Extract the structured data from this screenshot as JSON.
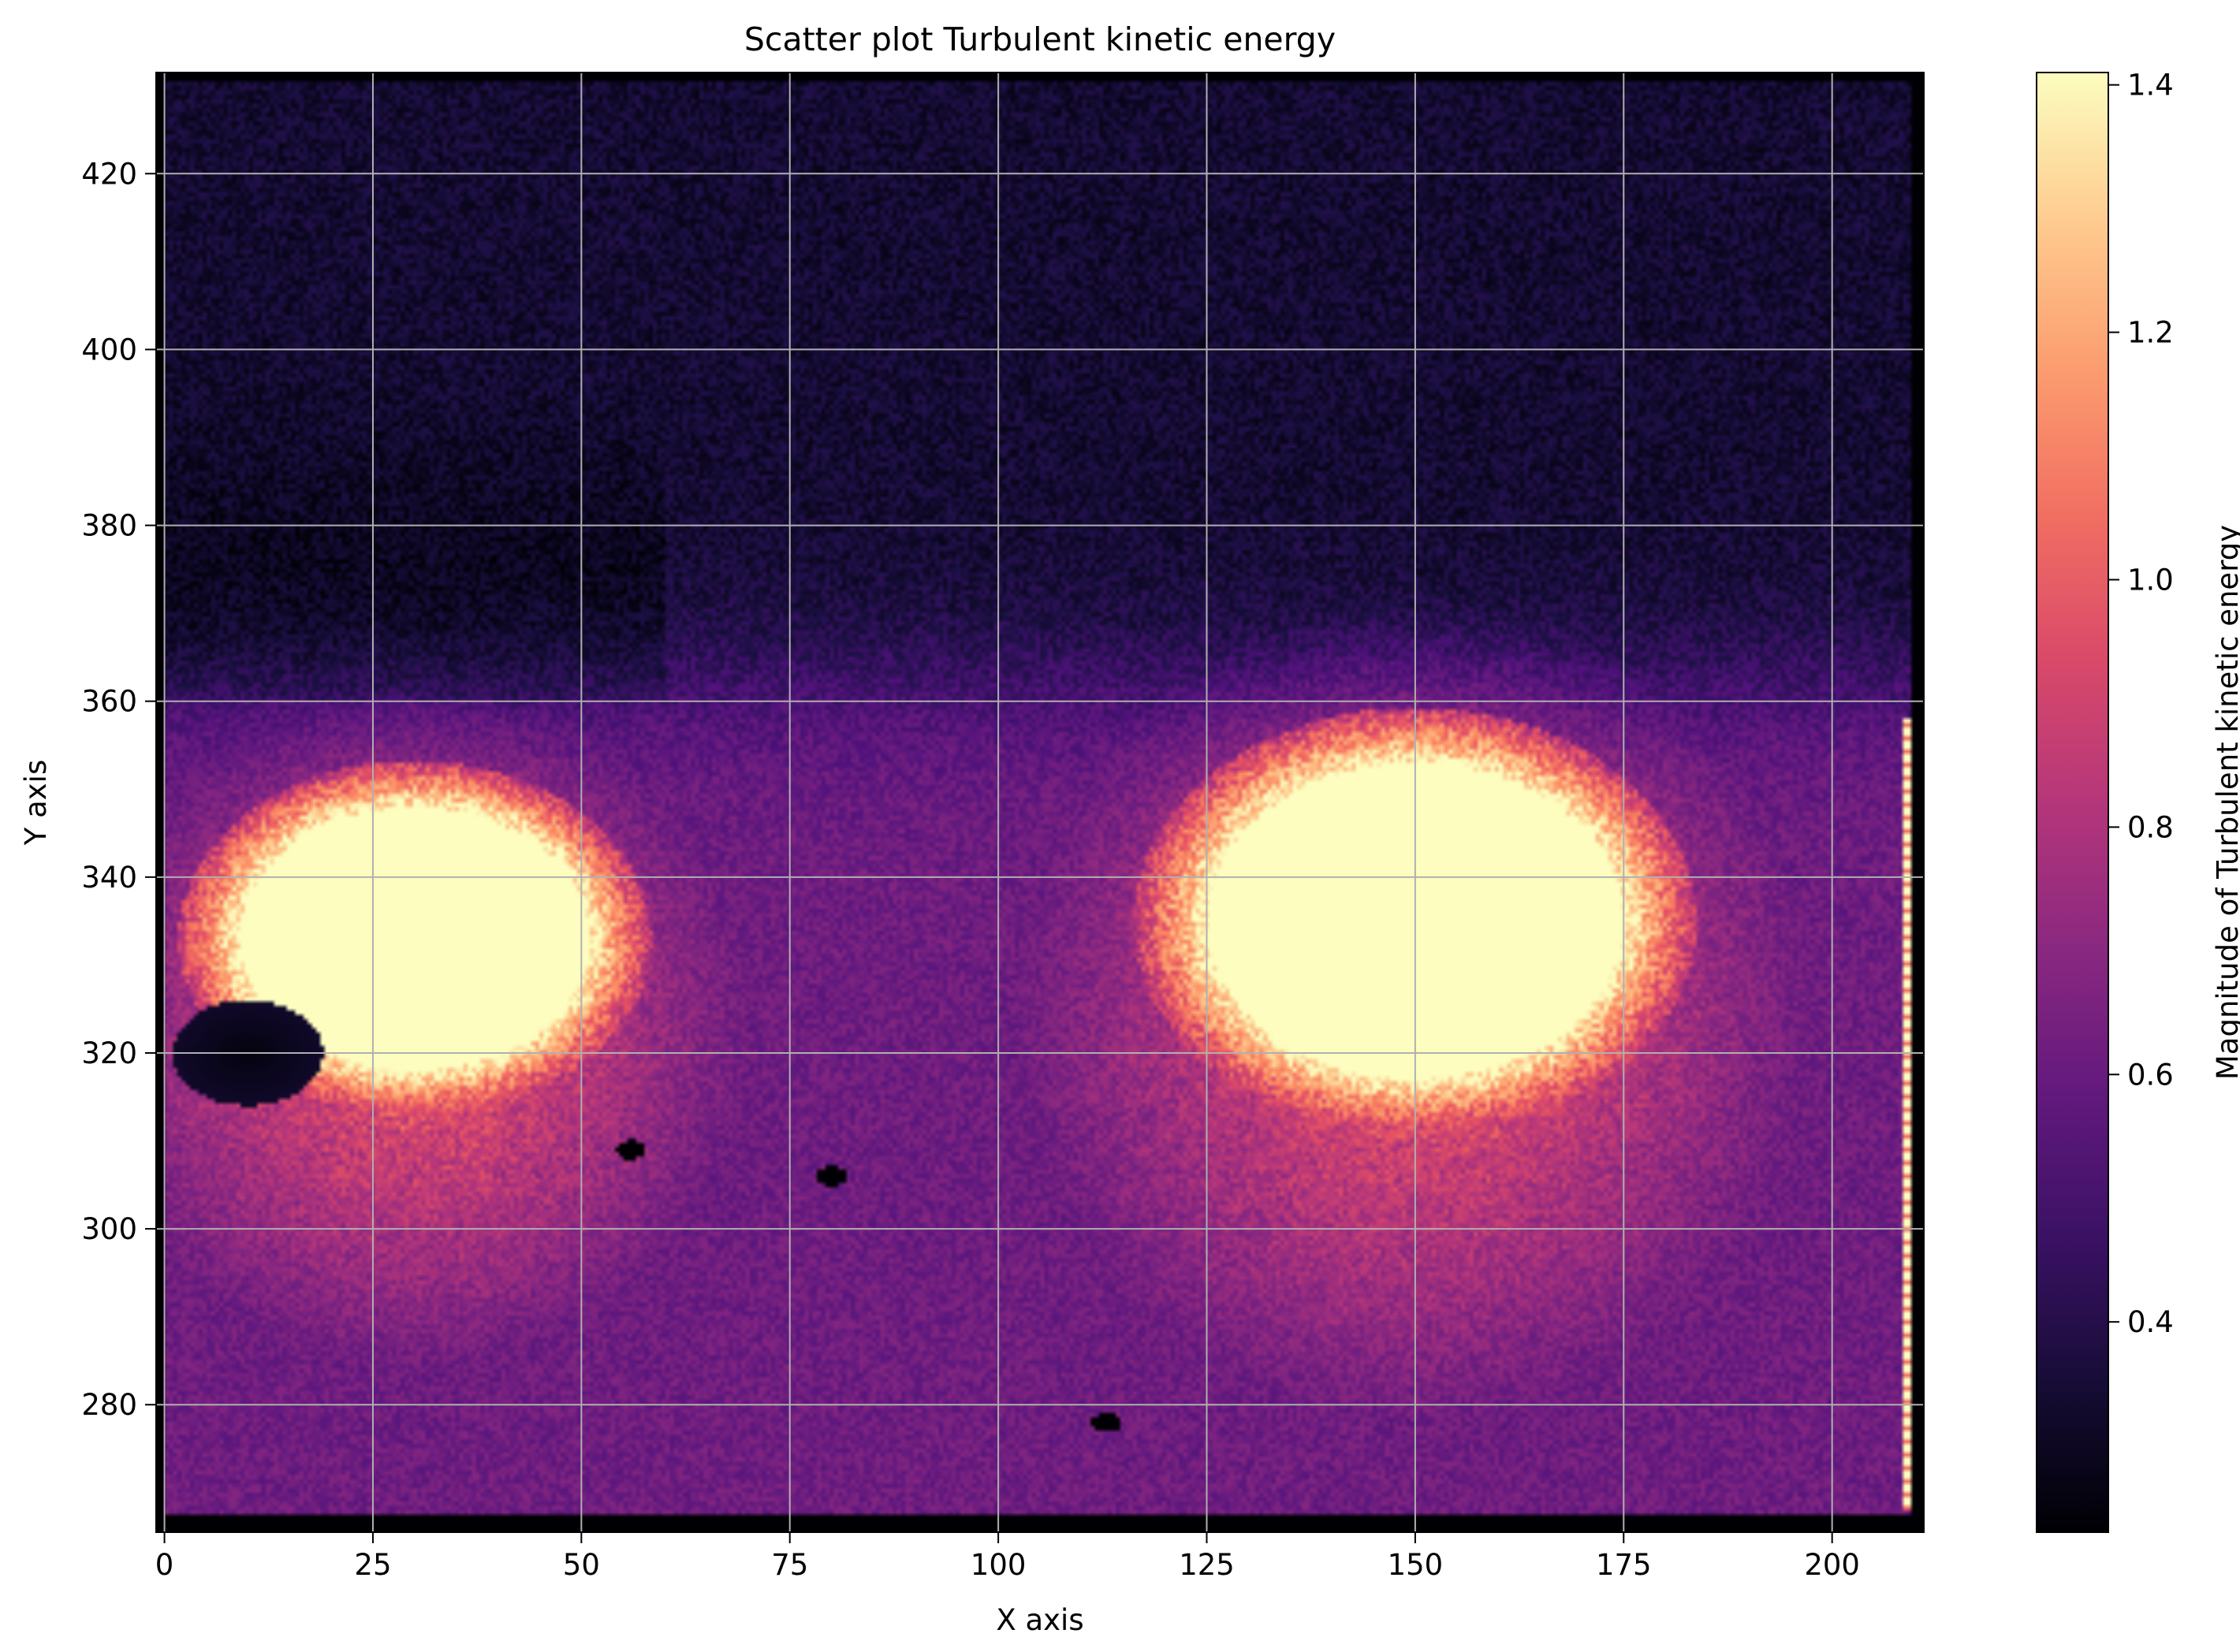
{
  "chart_data": {
    "type": "heatmap",
    "title": "Scatter plot Turbulent kinetic energy",
    "xlabel": "X axis",
    "ylabel": "Y axis",
    "xlim": [
      -1,
      211
    ],
    "ylim": [
      265.5,
      431.5
    ],
    "x_ticks": [
      0,
      25,
      50,
      75,
      100,
      125,
      150,
      175,
      200
    ],
    "y_ticks": [
      280,
      300,
      320,
      340,
      360,
      380,
      400,
      420
    ],
    "grid": true,
    "colormap": "magma",
    "colorbar": {
      "label": "Magnitude of Turbulent kinetic energy",
      "range": [
        0.23,
        1.41
      ],
      "ticks": [
        0.4,
        0.6,
        0.8,
        1.0,
        1.2,
        1.4
      ],
      "tick_labels": [
        "0.4",
        "0.6",
        "0.8",
        "1.0",
        "1.2",
        "1.4"
      ]
    },
    "data_extent": {
      "x": [
        0,
        209
      ],
      "y": [
        267.5,
        430.5
      ]
    },
    "features": [
      {
        "kind": "high-energy blob",
        "center": [
          30,
          333
        ],
        "x_extent": [
          8,
          50
        ],
        "y_extent": [
          317,
          347
        ],
        "value": 1.41
      },
      {
        "kind": "high-energy blob",
        "center": [
          150,
          335
        ],
        "x_extent": [
          121,
          171
        ],
        "y_extent": [
          318,
          354
        ],
        "value": 1.41
      },
      {
        "kind": "low-energy pocket",
        "center": [
          10,
          320
        ],
        "x_extent": [
          2,
          20
        ],
        "y_extent": [
          313,
          325
        ],
        "value": 0.26
      },
      {
        "kind": "low-energy spot",
        "center": [
          56,
          309
        ],
        "value": 0.23
      },
      {
        "kind": "low-energy spot",
        "center": [
          80,
          306
        ],
        "value": 0.23
      },
      {
        "kind": "low-energy spot",
        "center": [
          113,
          278
        ],
        "value": 0.23
      },
      {
        "kind": "bright edge column",
        "x": 209,
        "y_extent": [
          268,
          358
        ],
        "value": 1.41
      }
    ],
    "background_levels": {
      "upper_region": 0.34,
      "lower_region": 0.62
    }
  }
}
